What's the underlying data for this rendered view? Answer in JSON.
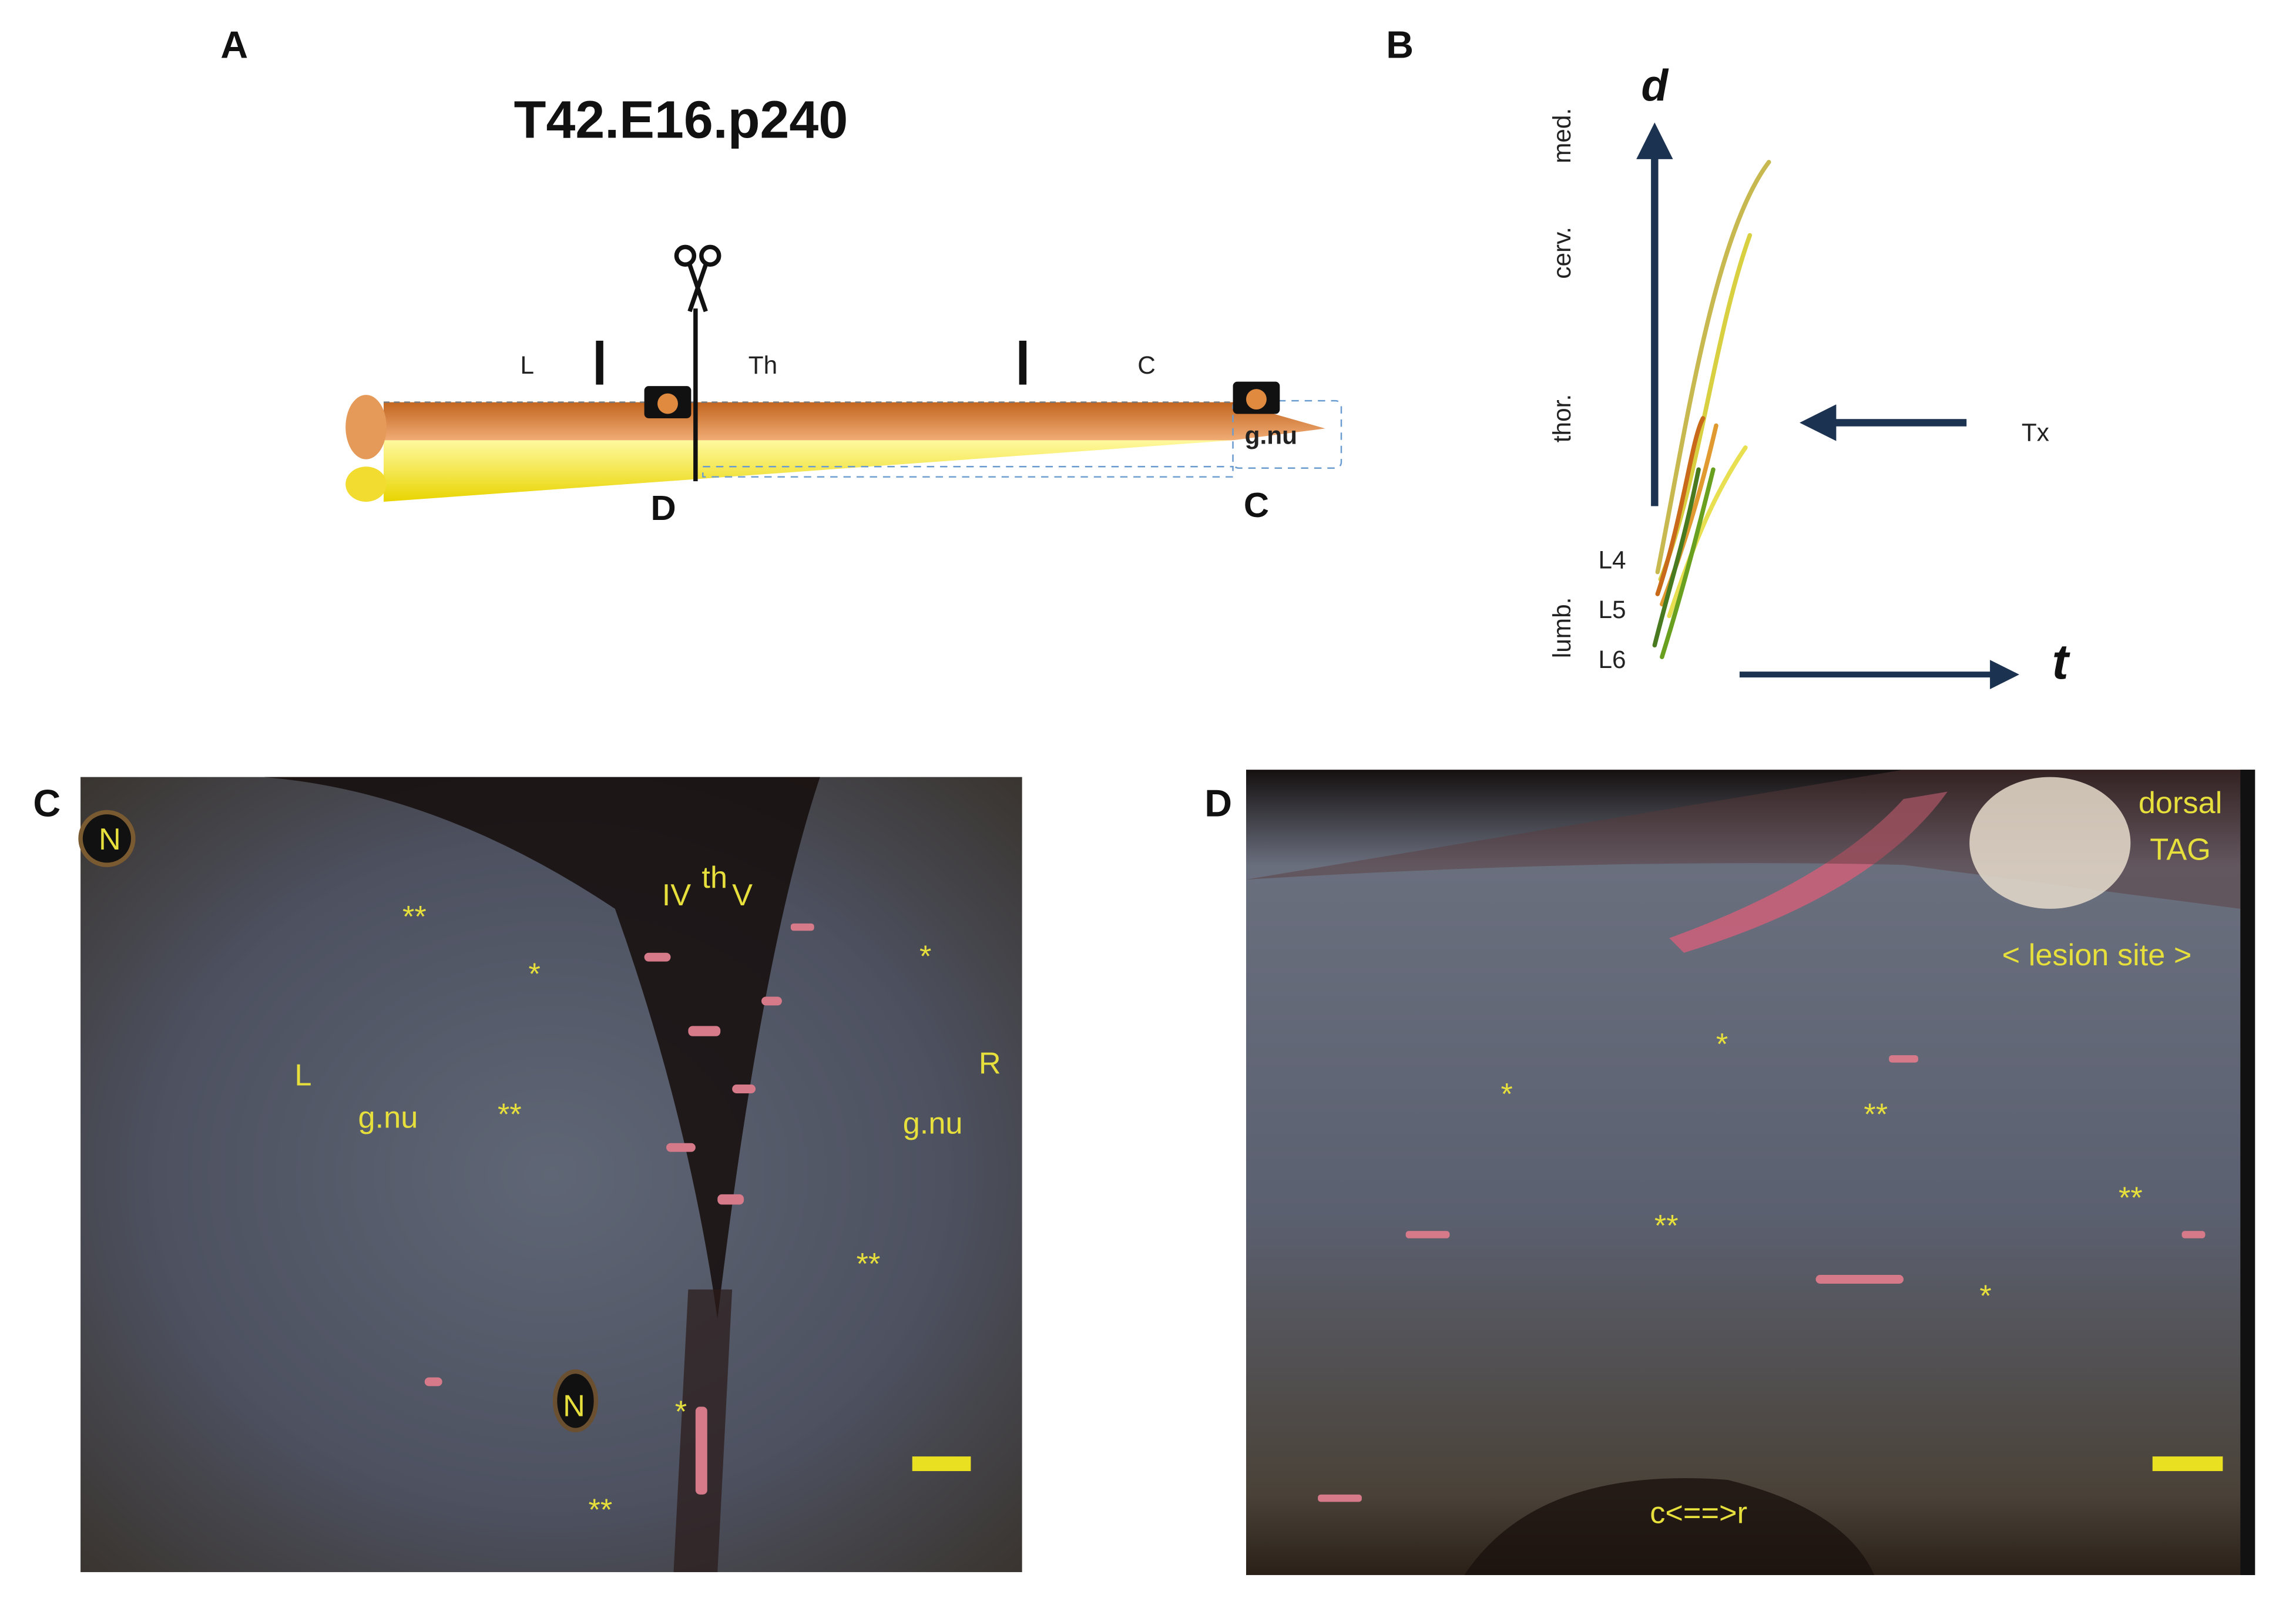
{
  "panels": {
    "a": {
      "label": "A",
      "title": "T42.E16.p240",
      "segments": [
        "L",
        "Th",
        "C"
      ],
      "region": "g.nu",
      "sections": [
        "D",
        "C"
      ]
    },
    "b": {
      "label": "B",
      "y_axis": "d",
      "x_axis": "t",
      "levels": [
        "med.",
        "cerv.",
        "thor.",
        "lumb."
      ],
      "segments": [
        "L4",
        "L5",
        "L6"
      ],
      "marker": "Tx"
    },
    "c": {
      "label": "C",
      "nuclei": [
        "N",
        "N"
      ],
      "ventricle": [
        "IV",
        "th",
        "V"
      ],
      "sides": [
        "L",
        "R"
      ],
      "regions": [
        "g.nu",
        "g.nu"
      ],
      "marks": [
        "**",
        "*",
        "**",
        "*",
        "**",
        "*",
        "**"
      ]
    },
    "d": {
      "label": "D",
      "ganglion": [
        "dorsal",
        "TAG"
      ],
      "site": "< lesion site >",
      "marks": [
        "*",
        "*",
        "**",
        "**",
        "**",
        "*"
      ],
      "axis": "c<==>r"
    }
  }
}
